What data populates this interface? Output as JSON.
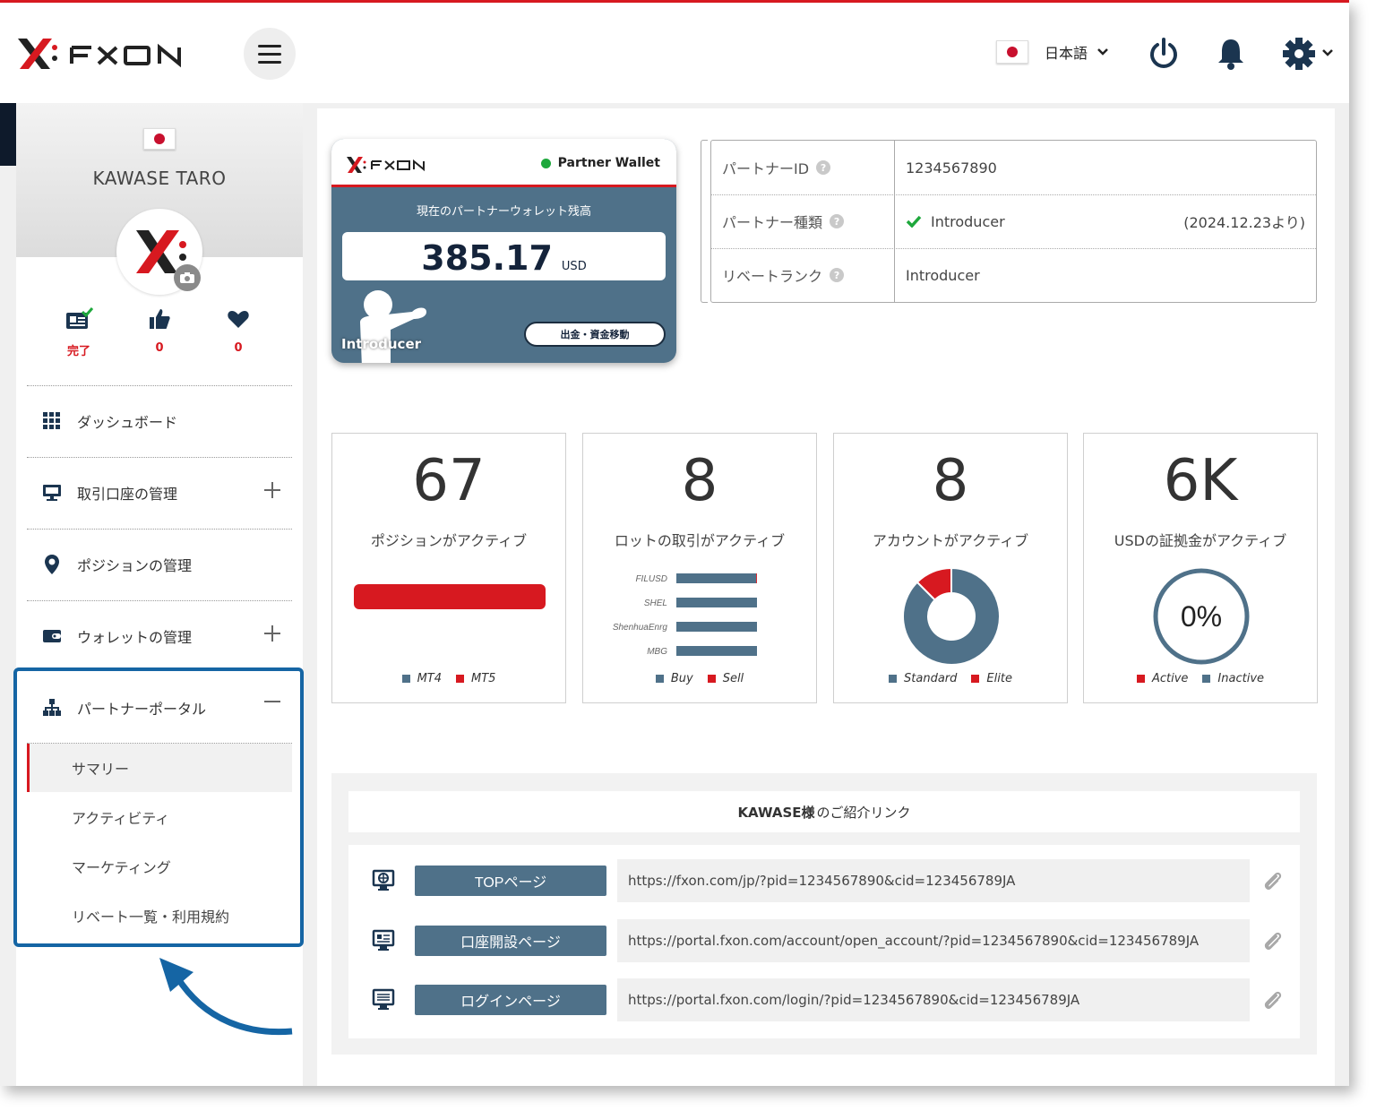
{
  "header": {
    "language": "日本語"
  },
  "sidebar": {
    "user_name": "KAWASE TARO",
    "stats": [
      {
        "label": "完了"
      },
      {
        "label": "0"
      },
      {
        "label": "0"
      }
    ],
    "nav": [
      {
        "label": "ダッシュボード"
      },
      {
        "label": "取引口座の管理"
      },
      {
        "label": "ポジションの管理"
      },
      {
        "label": "ウォレットの管理"
      },
      {
        "label": "パートナーポータル"
      }
    ],
    "sub_nav": [
      {
        "label": "サマリー"
      },
      {
        "label": "アクティビティ"
      },
      {
        "label": "マーケティング"
      },
      {
        "label": "リベート一覧・利用規約"
      }
    ]
  },
  "wallet": {
    "title": "Partner Wallet",
    "caption": "現在のパートナーウォレット残高",
    "balance": "385.17",
    "currency": "USD",
    "figure_label": "Introducer",
    "button": "出金・資金移動"
  },
  "partner_info": [
    {
      "key": "パートナーID",
      "value": "1234567890",
      "note": ""
    },
    {
      "key": "パートナー種類",
      "value": "Introducer",
      "note": "(2024.12.23より)"
    },
    {
      "key": "リベートランク",
      "value": "Introducer",
      "note": ""
    }
  ],
  "cards": [
    {
      "big": "67",
      "caption": "ポジションがアクティブ",
      "legend": [
        "MT4",
        "MT5"
      ]
    },
    {
      "big": "8",
      "caption": "ロットの取引がアクティブ",
      "legend": [
        "Buy",
        "Sell"
      ]
    },
    {
      "big": "8",
      "caption": "アカウントがアクティブ",
      "legend": [
        "Standard",
        "Elite"
      ]
    },
    {
      "big": "6K",
      "caption": "USDの証拠金がアクティブ",
      "legend": [
        "Active",
        "Inactive"
      ]
    }
  ],
  "chart_data": [
    {
      "type": "bar",
      "title": "ポジションがアクティブ",
      "categories": [
        ""
      ],
      "series": [
        {
          "name": "MT4",
          "values": [
            0
          ]
        },
        {
          "name": "MT5",
          "values": [
            67
          ]
        }
      ]
    },
    {
      "type": "bar",
      "orientation": "horizontal",
      "title": "ロットの取引がアクティブ",
      "categories": [
        "FILUSD",
        "SHEL",
        "ShenhuaEnrg",
        "MBG"
      ],
      "series": [
        {
          "name": "Buy",
          "values": [
            0.99,
            1,
            1,
            1
          ]
        },
        {
          "name": "Sell",
          "values": [
            0.01,
            0,
            0,
            0
          ]
        }
      ]
    },
    {
      "type": "pie",
      "title": "アカウントがアクティブ",
      "categories": [
        "Standard",
        "Elite"
      ],
      "values": [
        7,
        1
      ],
      "donut": true
    },
    {
      "type": "pie",
      "title": "USDの証拠金がアクティブ",
      "categories": [
        "Active",
        "Inactive"
      ],
      "values": [
        0,
        100
      ],
      "center_label": "0%",
      "donut": true
    }
  ],
  "links": {
    "title_strong": "KAWASE様",
    "title_rest": " のご紹介リンク",
    "rows": [
      {
        "button": "TOPページ",
        "url": "https://fxon.com/jp/?pid=1234567890&cid=123456789JA"
      },
      {
        "button": "口座開設ページ",
        "url": "https://portal.fxon.com/account/open_account/?pid=1234567890&cid=123456789JA"
      },
      {
        "button": "ログインページ",
        "url": "https://portal.fxon.com/login/?pid=1234567890&cid=123456789JA"
      }
    ]
  },
  "colors": {
    "brand_red": "#d71920",
    "slate": "#4f7189",
    "highlight_blue": "#1565a4",
    "check_green": "#1ea83c"
  }
}
